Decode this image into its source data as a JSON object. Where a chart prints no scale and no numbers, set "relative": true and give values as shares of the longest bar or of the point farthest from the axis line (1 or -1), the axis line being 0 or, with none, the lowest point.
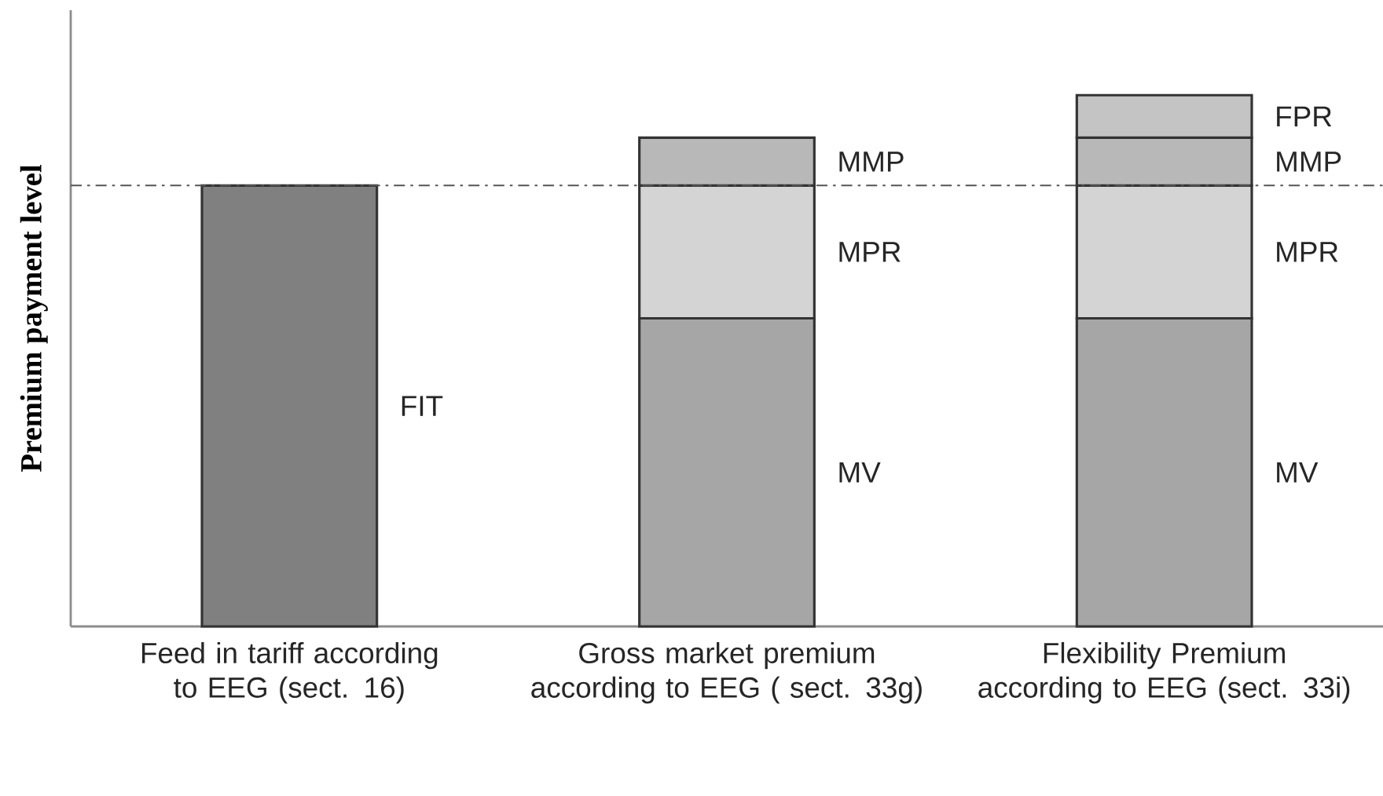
{
  "chart_data": {
    "type": "bar",
    "stacked": true,
    "relative": true,
    "ylabel": "**Premium payment level**",
    "categories": [
      "Feed in tariff according to EEG (sect. 16)",
      "Gross market premium according to EEG ( sect. 33g)",
      "Flexibility Premium according to EEG (sect. 33i)"
    ],
    "series": [
      {
        "name": "FIT",
        "color": "#808080",
        "values": [
          0.83,
          null,
          null
        ]
      },
      {
        "name": "MV",
        "color": "#a6a6a6",
        "values": [
          null,
          0.58,
          0.58
        ]
      },
      {
        "name": "MPR",
        "color": "#d4d4d4",
        "values": [
          null,
          0.25,
          0.25
        ]
      },
      {
        "name": "MMP",
        "color": "#b8b8b8",
        "values": [
          null,
          0.09,
          0.09
        ]
      },
      {
        "name": "FPR",
        "color": "#c4c4c4",
        "values": [
          null,
          null,
          0.08
        ]
      }
    ],
    "ref_lines": [
      {
        "axis": "y",
        "value": 0.83,
        "color": "#555555"
      }
    ],
    "grid": false
  }
}
